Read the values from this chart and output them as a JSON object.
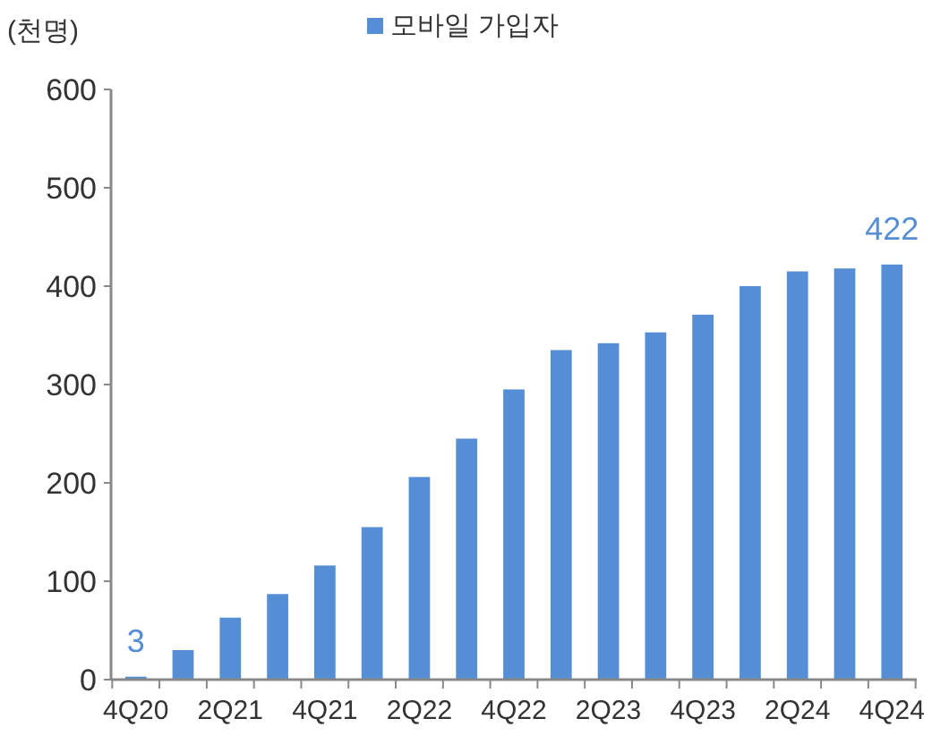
{
  "chart_data": {
    "type": "bar",
    "ylabel": "(천명)",
    "categories": [
      "4Q20",
      null,
      "2Q21",
      null,
      "4Q21",
      null,
      "2Q22",
      null,
      "4Q22",
      null,
      "2Q23",
      null,
      "4Q23",
      null,
      "2Q24",
      null,
      "4Q24"
    ],
    "series": [
      {
        "name": "모바일 가입자",
        "color": "#558ed5",
        "values": [
          3,
          30,
          63,
          87,
          116,
          155,
          206,
          245,
          295,
          335,
          342,
          353,
          371,
          400,
          415,
          418,
          422
        ],
        "value_labels": [
          "3",
          null,
          null,
          null,
          null,
          null,
          null,
          null,
          null,
          null,
          null,
          null,
          null,
          null,
          null,
          null,
          "422"
        ]
      }
    ],
    "ylim": [
      0,
      600
    ],
    "yticks": [
      0,
      100,
      200,
      300,
      400,
      500,
      600
    ],
    "grid": false,
    "legend": "top"
  }
}
